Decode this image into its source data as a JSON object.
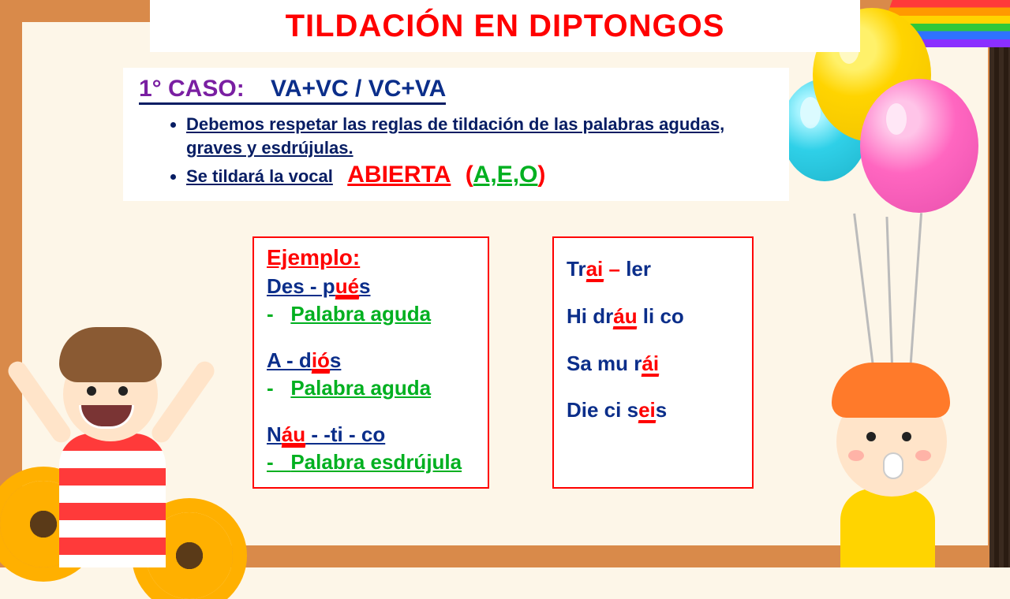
{
  "title": "TILDACIÓN EN DIPTONGOS",
  "colors": {
    "title": "#ff0000",
    "blue": "#0b2e8a",
    "purple": "#7a1fa2",
    "green": "#00b020",
    "red": "#ff0000",
    "frame": "#d98a4a",
    "paper": "#fdf6e8",
    "white": "#ffffff"
  },
  "case": {
    "label": "1° CASO:",
    "formula": "VA+VC / VC+VA",
    "bullets": [
      "Debemos respetar las reglas de tildación de las palabras agudas, graves y esdrújulas.",
      "Se tildará la vocal"
    ],
    "bullet2_big": "ABIERTA",
    "bullet2_paren_open": "(",
    "bullet2_aeo": "A,E,O",
    "bullet2_paren_close": ")"
  },
  "left_box": {
    "heading": "Ejemplo:",
    "items": [
      {
        "pre": "Des - p",
        "di": "ué",
        "post": "s",
        "type": "Palabra aguda"
      },
      {
        "pre": "A - d",
        "di": "ió",
        "post": "s",
        "type": "Palabra aguda"
      },
      {
        "pre": "N",
        "di": "áu",
        "post": " - -ti - co",
        "type": "Palabra esdrújula"
      }
    ]
  },
  "right_box": {
    "items": [
      {
        "parts": [
          {
            "t": "Tr",
            "c": "blue"
          },
          {
            "t": "ai",
            "c": "red",
            "u": true
          },
          {
            "t": " – ",
            "c": "red"
          },
          {
            "t": "ler",
            "c": "blue"
          }
        ]
      },
      {
        "parts": [
          {
            "t": "Hi ",
            "c": "blue"
          },
          {
            "t": "dr",
            "c": "blue"
          },
          {
            "t": "áu",
            "c": "red",
            "u": true
          },
          {
            "t": "   li   co",
            "c": "blue"
          }
        ]
      },
      {
        "parts": [
          {
            "t": "Sa   mu   r",
            "c": "blue"
          },
          {
            "t": "ái",
            "c": "red",
            "u": true
          }
        ]
      },
      {
        "parts": [
          {
            "t": "Die   ci   s",
            "c": "blue"
          },
          {
            "t": "ei",
            "c": "red",
            "u": true
          },
          {
            "t": "s",
            "c": "blue"
          }
        ]
      }
    ]
  },
  "decor": {
    "balloons": [
      "yellow",
      "pink",
      "blue"
    ],
    "kids": [
      "boy-striped-left",
      "boy-orange-right"
    ],
    "flowers": [
      "sunflower",
      "sunflower"
    ],
    "rainbow": true
  }
}
